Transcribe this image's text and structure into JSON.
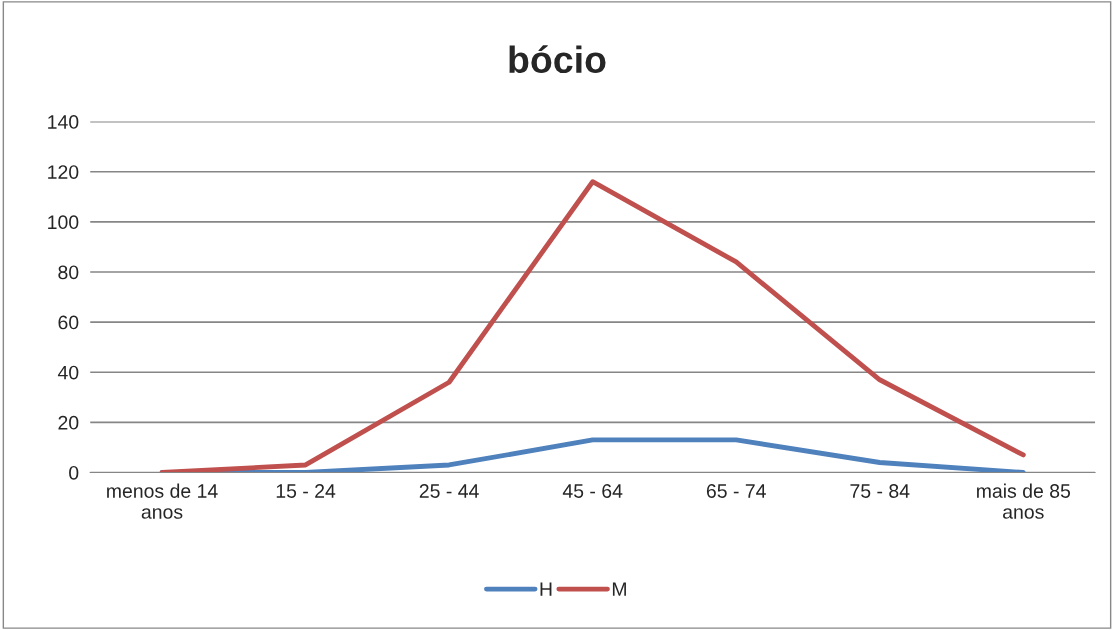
{
  "chart_data": {
    "type": "line",
    "title": "bócio",
    "categories": [
      "menos de 14\nanos",
      "15 - 24",
      "25 - 44",
      "45 - 64",
      "65 - 74",
      "75 - 84",
      "mais de 85\nanos"
    ],
    "series": [
      {
        "name": "H",
        "color": "#4f81bd",
        "values": [
          0,
          0,
          3,
          13,
          13,
          4,
          0
        ]
      },
      {
        "name": "M",
        "color": "#c0504d",
        "values": [
          0,
          3,
          36,
          116,
          84,
          37,
          7
        ]
      }
    ],
    "ylim": [
      0,
      140
    ],
    "yticks": [
      0,
      20,
      40,
      60,
      80,
      100,
      120,
      140
    ],
    "grid": "y",
    "legend": "bottom",
    "marker": "none",
    "line_style": "solid"
  }
}
